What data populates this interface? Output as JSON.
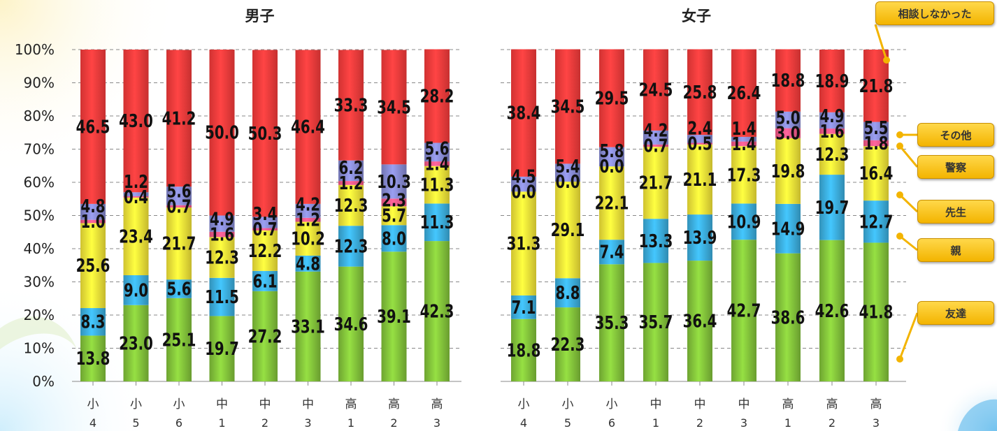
{
  "colors": {
    "friends": "#86c83c",
    "parents": "#3db2e3",
    "teachers": "#fcec3a",
    "police": "#ff5a8c",
    "other": "#8a8ed8",
    "no_consult": "#ff3d3d",
    "callout": "#f6c21c"
  },
  "legend": [
    {
      "key": "no_consult",
      "label": "相談しなかった"
    },
    {
      "key": "other",
      "label": "その他"
    },
    {
      "key": "police",
      "label": "警察"
    },
    {
      "key": "teachers",
      "label": "先生"
    },
    {
      "key": "parents",
      "label": "親"
    },
    {
      "key": "friends",
      "label": "友達"
    }
  ],
  "chart_data": [
    {
      "type": "bar",
      "stacked": true,
      "title": "男子",
      "categories": [
        [
          "小",
          "4"
        ],
        [
          "小",
          "5"
        ],
        [
          "小",
          "6"
        ],
        [
          "中",
          "1"
        ],
        [
          "中",
          "2"
        ],
        [
          "中",
          "3"
        ],
        [
          "高",
          "1"
        ],
        [
          "高",
          "2"
        ],
        [
          "高",
          "3"
        ]
      ],
      "ylim": [
        0,
        100
      ],
      "yticks": [
        "0%",
        "10%",
        "20%",
        "30%",
        "40%",
        "50%",
        "60%",
        "70%",
        "80%",
        "90%",
        "100%"
      ],
      "grid": true,
      "series": [
        {
          "key": "friends",
          "values": [
            13.8,
            23.0,
            25.1,
            19.7,
            27.2,
            33.1,
            34.6,
            39.1,
            42.3
          ]
        },
        {
          "key": "parents",
          "values": [
            8.3,
            9.0,
            5.6,
            11.5,
            6.1,
            4.8,
            12.3,
            8.0,
            11.3
          ]
        },
        {
          "key": "teachers",
          "values": [
            25.6,
            23.4,
            21.7,
            12.3,
            12.2,
            10.2,
            12.3,
            5.7,
            11.3
          ]
        },
        {
          "key": "police",
          "values": [
            1.0,
            0.4,
            0.7,
            1.6,
            0.7,
            1.2,
            1.2,
            2.3,
            1.4
          ]
        },
        {
          "key": "other",
          "values": [
            4.8,
            1.2,
            5.6,
            4.9,
            3.4,
            4.2,
            6.2,
            10.3,
            5.6
          ]
        },
        {
          "key": "no_consult",
          "values": [
            46.5,
            43.0,
            41.2,
            50.0,
            50.3,
            46.4,
            33.3,
            34.5,
            28.2
          ]
        }
      ]
    },
    {
      "type": "bar",
      "stacked": true,
      "title": "女子",
      "categories": [
        [
          "小",
          "4"
        ],
        [
          "小",
          "5"
        ],
        [
          "小",
          "6"
        ],
        [
          "中",
          "1"
        ],
        [
          "中",
          "2"
        ],
        [
          "中",
          "3"
        ],
        [
          "高",
          "1"
        ],
        [
          "高",
          "2"
        ],
        [
          "高",
          "3"
        ]
      ],
      "ylim": [
        0,
        100
      ],
      "grid": true,
      "series": [
        {
          "key": "friends",
          "values": [
            18.8,
            22.3,
            35.3,
            35.7,
            36.4,
            42.7,
            38.6,
            42.6,
            41.8
          ]
        },
        {
          "key": "parents",
          "values": [
            7.1,
            8.8,
            7.4,
            13.3,
            13.9,
            10.9,
            14.9,
            19.7,
            12.7
          ]
        },
        {
          "key": "teachers",
          "values": [
            31.3,
            29.1,
            22.1,
            21.7,
            21.1,
            17.3,
            19.8,
            12.3,
            16.4
          ]
        },
        {
          "key": "police",
          "values": [
            0.0,
            0.0,
            0.0,
            0.7,
            0.5,
            1.4,
            3.0,
            1.6,
            1.8
          ]
        },
        {
          "key": "other",
          "values": [
            4.5,
            5.4,
            5.8,
            4.2,
            2.4,
            1.4,
            5.0,
            4.9,
            5.5
          ]
        },
        {
          "key": "no_consult",
          "values": [
            38.4,
            34.5,
            29.5,
            24.5,
            25.8,
            26.4,
            18.8,
            18.9,
            21.8
          ]
        }
      ]
    }
  ]
}
